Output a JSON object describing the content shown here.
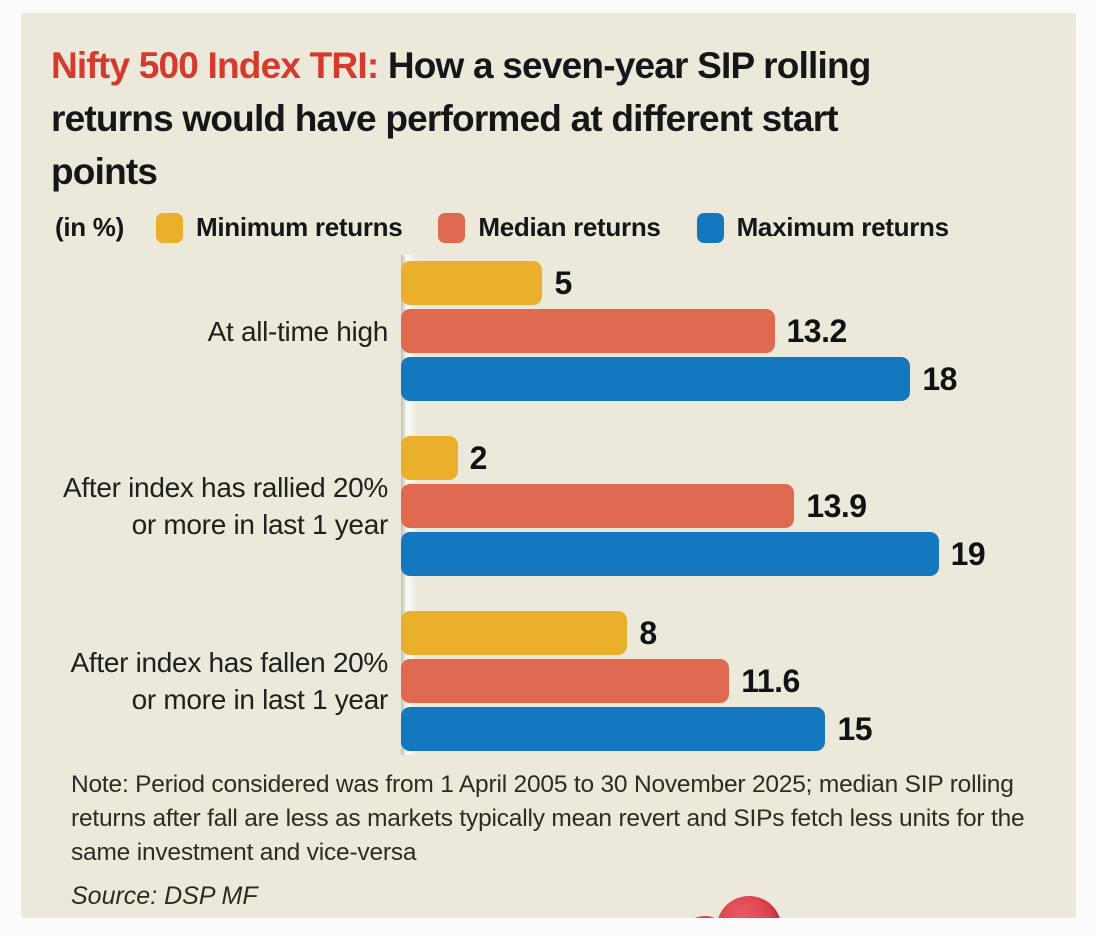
{
  "title": {
    "highlight": "Nifty 500 Index TRI:",
    "rest": " How a seven-year SIP rolling returns would have performed at different start points"
  },
  "unit_label": "(in %)",
  "colors": {
    "card_background": "#ece9db",
    "title_highlight": "#d53a2c",
    "minimum": "#eab02c",
    "median": "#df6a4f",
    "maximum": "#1478be"
  },
  "chart_data": {
    "type": "bar",
    "orientation": "horizontal",
    "title": "Nifty 500 Index TRI: How a seven-year SIP rolling returns would have performed at different start points",
    "unit": "in %",
    "xlim": [
      0,
      20
    ],
    "grid": false,
    "legend_position": "top",
    "series_names": [
      "Minimum returns",
      "Median returns",
      "Maximum returns"
    ],
    "series": [
      {
        "name": "Minimum returns",
        "color": "#eab02c",
        "values": [
          5,
          2,
          8
        ]
      },
      {
        "name": "Median returns",
        "color": "#df6a4f",
        "values": [
          13.2,
          13.9,
          11.6
        ]
      },
      {
        "name": "Maximum returns",
        "color": "#1478be",
        "values": [
          18,
          19,
          15
        ]
      }
    ],
    "categories": [
      "At all-time high",
      "After index has rallied 20% or more in last 1 year",
      "After index has fallen 20% or more in last 1 year"
    ],
    "groups": [
      {
        "label_lines": "At all-time high",
        "bars": [
          {
            "series": "Minimum returns",
            "color": "#eab02c",
            "value": 5,
            "label": "5"
          },
          {
            "series": "Median returns",
            "color": "#df6a4f",
            "value": 13.2,
            "label": "13.2"
          },
          {
            "series": "Maximum returns",
            "color": "#1478be",
            "value": 18,
            "label": "18"
          }
        ]
      },
      {
        "label_lines": "After index has rallied 20%\nor more in last 1 year",
        "bars": [
          {
            "series": "Minimum returns",
            "color": "#eab02c",
            "value": 2,
            "label": "2"
          },
          {
            "series": "Median returns",
            "color": "#df6a4f",
            "value": 13.9,
            "label": "13.9"
          },
          {
            "series": "Maximum returns",
            "color": "#1478be",
            "value": 19,
            "label": "19"
          }
        ]
      },
      {
        "label_lines": "After index has fallen 20%\nor more in last 1 year",
        "bars": [
          {
            "series": "Minimum returns",
            "color": "#eab02c",
            "value": 8,
            "label": "8"
          },
          {
            "series": "Median returns",
            "color": "#df6a4f",
            "value": 11.6,
            "label": "11.6"
          },
          {
            "series": "Maximum returns",
            "color": "#1478be",
            "value": 15,
            "label": "15"
          }
        ]
      }
    ]
  },
  "note": "Note: Period considered was from 1 April 2005 to 30 November 2025; median SIP rolling returns after fall are less as markets typically mean revert and SIPs fetch less units for the same investment and vice-versa",
  "source": "Source: DSP MF"
}
